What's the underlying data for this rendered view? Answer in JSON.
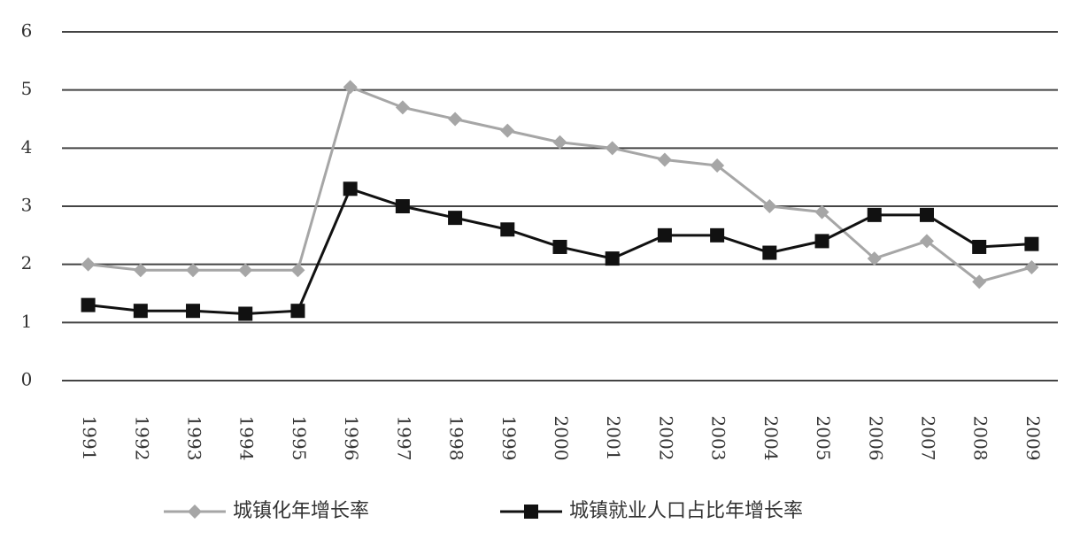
{
  "chart_data": {
    "type": "line",
    "categories": [
      "1991",
      "1992",
      "1993",
      "1994",
      "1995",
      "1996",
      "1997",
      "1998",
      "1999",
      "2000",
      "2001",
      "2002",
      "2003",
      "2004",
      "2005",
      "2006",
      "2007",
      "2008",
      "2009"
    ],
    "series": [
      {
        "name": "城镇化年增长率",
        "color": "#a6a6a6",
        "marker": "diamond",
        "values": [
          2.0,
          1.9,
          1.9,
          1.9,
          1.9,
          5.05,
          4.7,
          4.5,
          4.3,
          4.1,
          4.0,
          3.8,
          3.7,
          3.0,
          2.9,
          2.1,
          2.4,
          1.7,
          1.95
        ]
      },
      {
        "name": "城镇就业人口占比年增长率",
        "color": "#111111",
        "marker": "square",
        "values": [
          1.3,
          1.2,
          1.2,
          1.15,
          1.2,
          3.3,
          3.0,
          2.8,
          2.6,
          2.3,
          2.1,
          2.5,
          2.5,
          2.2,
          2.4,
          2.85,
          2.85,
          2.3,
          2.35
        ]
      }
    ],
    "ylim": [
      0,
      6
    ],
    "yticks": [
      0,
      1,
      2,
      3,
      4,
      5,
      6
    ],
    "grid": true,
    "legend": "bottom"
  }
}
